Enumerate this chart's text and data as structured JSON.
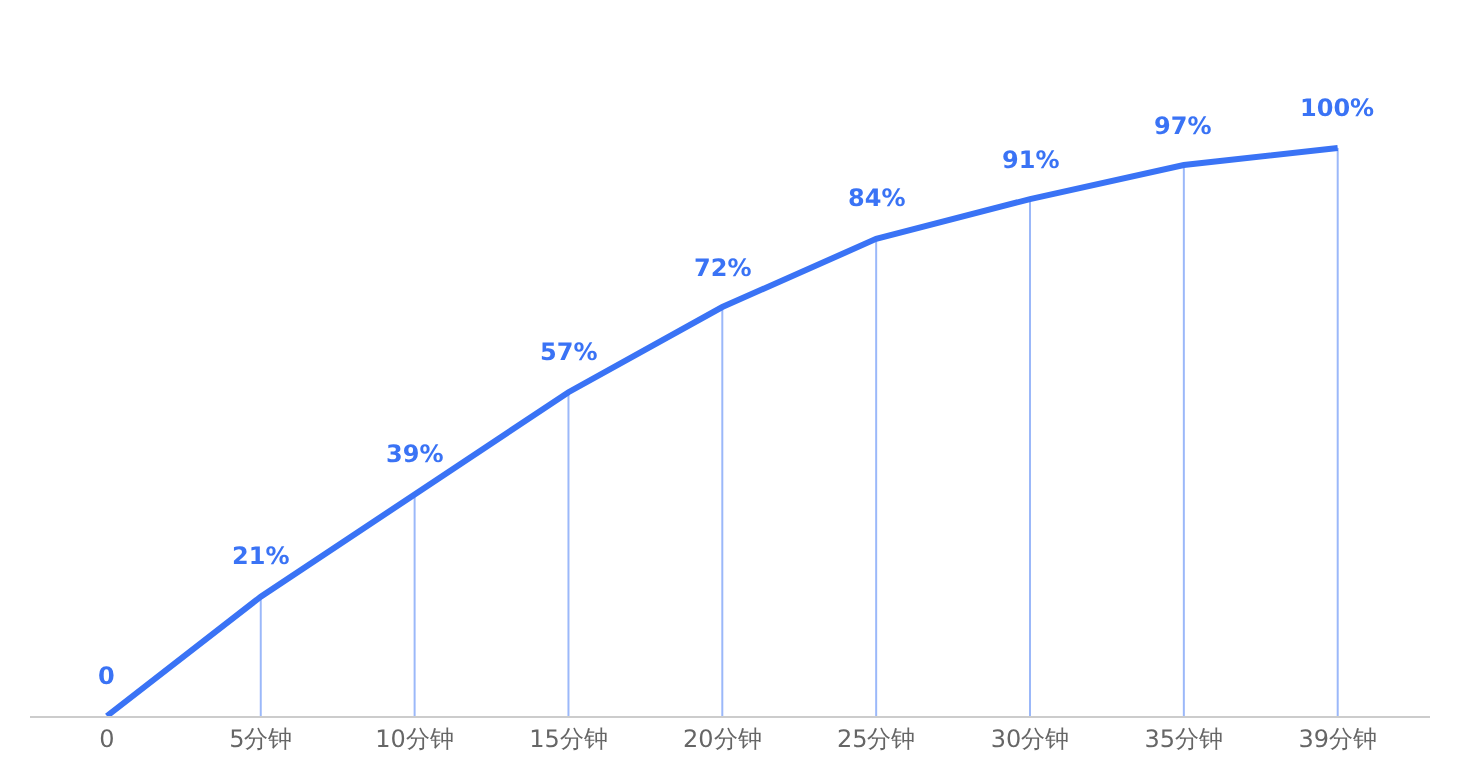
{
  "chart_data": {
    "type": "line",
    "categories": [
      "0",
      "5分钟",
      "10分钟",
      "15分钟",
      "20分钟",
      "25分钟",
      "30分钟",
      "35分钟",
      "39分钟"
    ],
    "series": [
      {
        "color": "#3a73f5",
        "values": [
          0,
          21,
          39,
          57,
          72,
          84,
          91,
          97,
          100
        ],
        "value_labels": [
          "0",
          "21%",
          "39%",
          "57%",
          "72%",
          "84%",
          "91%",
          "97%",
          "100%"
        ]
      }
    ],
    "marker": "none",
    "line_style": "solid",
    "grid": "x",
    "legend": false,
    "tick_labels": "x"
  }
}
